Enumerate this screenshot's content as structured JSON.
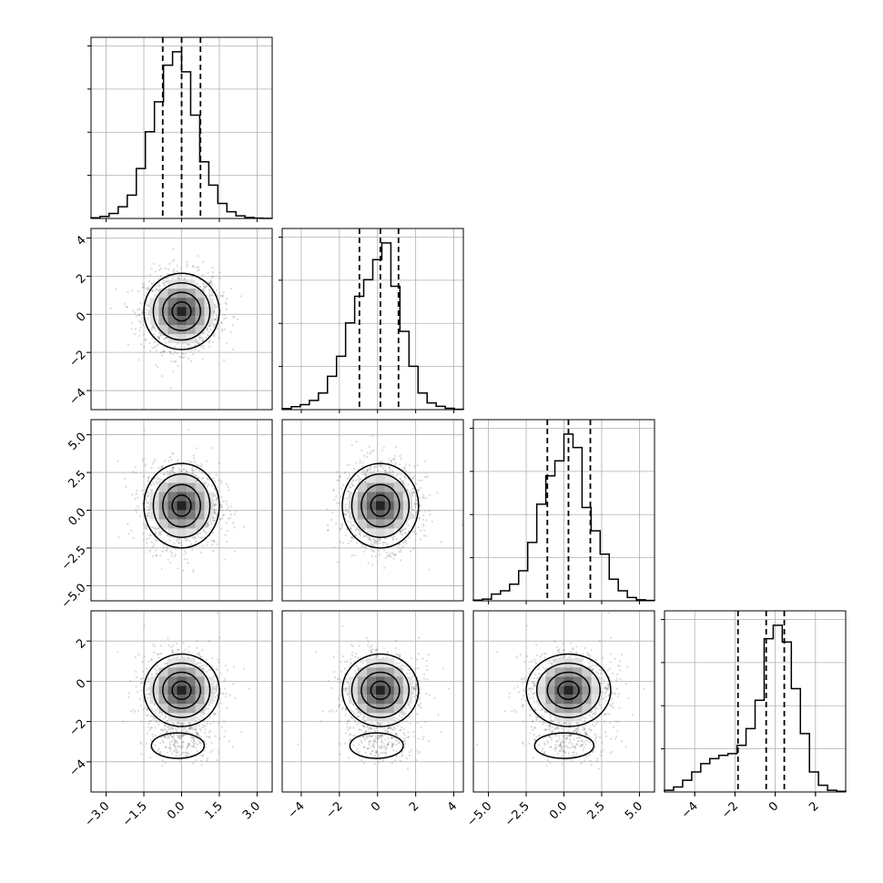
{
  "chart_data": {
    "type": "corner",
    "n_params": 4,
    "quantiles": [
      0.16,
      0.5,
      0.84
    ],
    "params": [
      {
        "range": [
          -3.6,
          3.6
        ],
        "ticks": [
          -3.0,
          -1.5,
          0.0,
          1.5,
          3.0
        ],
        "tick_labels": [
          "−3.0",
          "−1.5",
          "0.0",
          "1.5",
          "3.0"
        ],
        "quantile_values": [
          -0.75,
          0.0,
          0.75
        ],
        "hist_edges": [
          -3.6,
          -3.24,
          -2.88,
          -2.52,
          -2.16,
          -1.8,
          -1.44,
          -1.08,
          -0.72,
          -0.36,
          0.0,
          0.36,
          0.72,
          1.08,
          1.44,
          1.8,
          2.16,
          2.52,
          2.88,
          3.24,
          3.6
        ],
        "hist_counts": [
          0.004,
          0.012,
          0.03,
          0.07,
          0.14,
          0.3,
          0.52,
          0.7,
          0.92,
          1.0,
          0.88,
          0.62,
          0.34,
          0.2,
          0.09,
          0.04,
          0.016,
          0.006,
          0.002,
          0.001
        ]
      },
      {
        "range": [
          -5.0,
          4.5
        ],
        "ticks": [
          -4,
          -2,
          0,
          2,
          4
        ],
        "tick_labels": [
          "−4",
          "−2",
          "0",
          "2",
          "4"
        ],
        "quantile_values": [
          -0.95,
          0.15,
          1.1
        ],
        "hist_edges": [
          -5.0,
          -4.525,
          -4.05,
          -3.575,
          -3.1,
          -2.625,
          -2.15,
          -1.675,
          -1.2,
          -0.725,
          -0.25,
          0.225,
          0.7,
          1.175,
          1.65,
          2.125,
          2.6,
          3.075,
          3.55,
          4.025,
          4.5
        ],
        "hist_counts": [
          0.006,
          0.018,
          0.03,
          0.055,
          0.1,
          0.2,
          0.32,
          0.52,
          0.68,
          0.78,
          0.9,
          1.0,
          0.74,
          0.47,
          0.26,
          0.1,
          0.04,
          0.02,
          0.008,
          0.002
        ]
      },
      {
        "range": [
          -6.0,
          6.0
        ],
        "ticks": [
          -5.0,
          -2.5,
          0.0,
          2.5,
          5.0
        ],
        "tick_labels": [
          "−5.0",
          "−2.5",
          "0.0",
          "2.5",
          "5.0"
        ],
        "quantile_values": [
          -1.1,
          0.3,
          1.75
        ],
        "hist_edges": [
          -6.0,
          -5.4,
          -4.8,
          -4.2,
          -3.6,
          -3.0,
          -2.4,
          -1.8,
          -1.2,
          -0.6,
          0.0,
          0.6,
          1.2,
          1.8,
          2.4,
          3.0,
          3.6,
          4.2,
          4.8,
          5.4,
          6.0
        ],
        "hist_counts": [
          0.004,
          0.01,
          0.04,
          0.06,
          0.1,
          0.18,
          0.35,
          0.58,
          0.75,
          0.84,
          1.0,
          0.92,
          0.56,
          0.42,
          0.28,
          0.13,
          0.06,
          0.02,
          0.006,
          0.002
        ]
      },
      {
        "range": [
          -5.5,
          3.5
        ],
        "ticks": [
          -4,
          -2,
          0,
          2
        ],
        "tick_labels": [
          "−4",
          "−2",
          "0",
          "2"
        ],
        "quantile_values": [
          -1.85,
          -0.45,
          0.45
        ],
        "hist_edges": [
          -5.5,
          -5.05,
          -4.6,
          -4.15,
          -3.7,
          -3.25,
          -2.8,
          -2.35,
          -1.9,
          -1.45,
          -1.0,
          -0.55,
          -0.1,
          0.35,
          0.8,
          1.25,
          1.7,
          2.15,
          2.6,
          3.05,
          3.5
        ],
        "hist_counts": [
          0.01,
          0.03,
          0.07,
          0.12,
          0.17,
          0.2,
          0.22,
          0.23,
          0.28,
          0.38,
          0.55,
          0.92,
          1.0,
          0.9,
          0.62,
          0.35,
          0.12,
          0.04,
          0.01,
          0.004
        ]
      }
    ],
    "pairs": [
      {
        "col": 0,
        "row": 1,
        "mean": [
          0.0,
          0.15
        ],
        "sd": [
          0.75,
          1.0
        ]
      },
      {
        "col": 0,
        "row": 2,
        "mean": [
          0.0,
          0.3
        ],
        "sd": [
          0.75,
          1.4
        ]
      },
      {
        "col": 1,
        "row": 2,
        "mean": [
          0.15,
          0.3
        ],
        "sd": [
          1.0,
          1.4
        ]
      },
      {
        "col": 0,
        "row": 3,
        "mean": [
          0.0,
          -0.45
        ],
        "sd": [
          0.75,
          0.9
        ]
      },
      {
        "col": 1,
        "row": 3,
        "mean": [
          0.15,
          -0.45
        ],
        "sd": [
          1.0,
          0.9
        ]
      },
      {
        "col": 2,
        "row": 3,
        "mean": [
          0.3,
          -0.45
        ],
        "sd": [
          1.4,
          0.9
        ]
      }
    ]
  }
}
